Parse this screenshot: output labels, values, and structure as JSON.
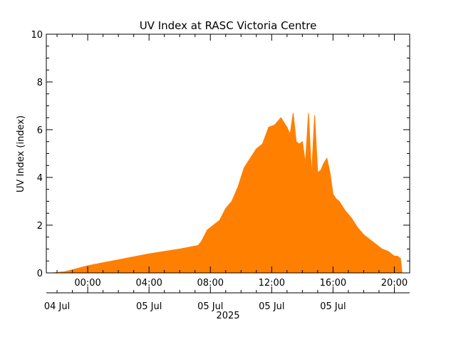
{
  "chart_data": {
    "type": "area",
    "title": "UV Index at RASC Victoria Centre",
    "ylabel": "UV Index (index)",
    "ylim": [
      0,
      10
    ],
    "yticks": [
      0,
      2,
      4,
      6,
      8,
      10
    ],
    "xlim_hours": [
      -2.7,
      21.0
    ],
    "xtick_labels": [
      {
        "hour": 0,
        "time": "00:00"
      },
      {
        "hour": 4,
        "time": "04:00"
      },
      {
        "hour": 8,
        "time": "08:00"
      },
      {
        "hour": 12,
        "time": "12:00"
      },
      {
        "hour": 16,
        "time": "16:00"
      },
      {
        "hour": 20,
        "time": "20:00"
      }
    ],
    "date_labels": [
      "04 Jul",
      "05 Jul",
      "05 Jul",
      "05 Jul",
      "05 Jul"
    ],
    "year_label": "2025",
    "fill_color": "#ff7f00",
    "series": [
      {
        "x": [
          -2.3,
          -1.5,
          0,
          2,
          4,
          6,
          7.2,
          7.4,
          7.8,
          8.2,
          8.6,
          9.0,
          9.4,
          9.8,
          10.2,
          10.6,
          11.0,
          11.4,
          11.8,
          12.2,
          12.6,
          13.0,
          13.2,
          13.4,
          13.6,
          13.8,
          14.0,
          14.2,
          14.4,
          14.6,
          14.8,
          15.0,
          15.2,
          15.4,
          15.6,
          15.8,
          16.0,
          16.2,
          16.4,
          16.8,
          17.2,
          17.6,
          18.0,
          18.4,
          18.8,
          19.2,
          19.6,
          20.0,
          20.2,
          20.4,
          20.5
        ],
        "y": [
          0,
          0.05,
          0.3,
          0.55,
          0.8,
          1.0,
          1.15,
          1.3,
          1.8,
          2.0,
          2.2,
          2.7,
          3.0,
          3.6,
          4.4,
          4.8,
          5.2,
          5.4,
          6.1,
          6.2,
          6.5,
          6.1,
          5.8,
          6.7,
          5.5,
          5.4,
          5.5,
          4.6,
          6.7,
          4.1,
          6.6,
          4.2,
          4.3,
          4.6,
          4.8,
          4.2,
          3.3,
          3.1,
          3.0,
          2.6,
          2.3,
          1.9,
          1.6,
          1.4,
          1.2,
          1.0,
          0.9,
          0.7,
          0.7,
          0.6,
          0.0
        ]
      }
    ]
  }
}
